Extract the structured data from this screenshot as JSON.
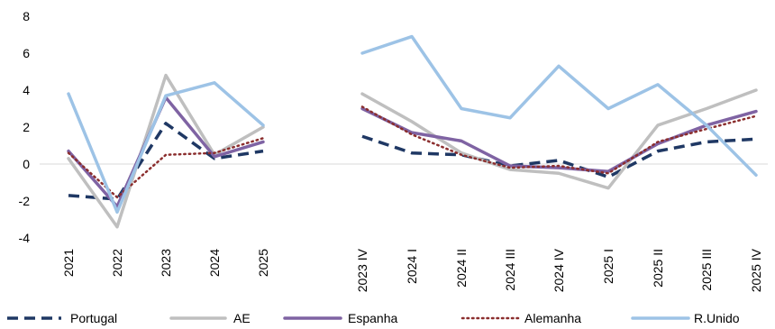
{
  "chart_data": {
    "type": "line",
    "y_axis": {
      "ylim": [
        -4,
        8
      ],
      "ticks": [
        "8",
        "6",
        "4",
        "2",
        "0",
        "-2",
        "-4"
      ],
      "tick_values": [
        8,
        6,
        4,
        2,
        0,
        -2,
        -4
      ]
    },
    "grid": false,
    "legend_position": "bottom",
    "panels": [
      {
        "x_labels": [
          "2021",
          "2022",
          "2023",
          "2024",
          "2025"
        ],
        "series": [
          {
            "name": "Portugal",
            "color": "#1f3864",
            "dash": "long-dash",
            "values": [
              -1.7,
              -1.9,
              2.2,
              0.3,
              0.7
            ]
          },
          {
            "name": "AE",
            "color": "#bfbfbf",
            "dash": "solid",
            "values": [
              0.3,
              -3.4,
              4.8,
              0.5,
              2.0
            ]
          },
          {
            "name": "Espanha",
            "color": "#7f63a3",
            "dash": "solid",
            "values": [
              0.7,
              -2.3,
              3.6,
              0.4,
              1.2
            ]
          },
          {
            "name": "Alemanha",
            "color": "#8b2e2e",
            "dash": "dotted",
            "values": [
              0.6,
              -1.8,
              0.5,
              0.6,
              1.4
            ]
          },
          {
            "name": "R.Unido",
            "color": "#9dc3e6",
            "dash": "solid",
            "values": [
              3.8,
              -2.6,
              3.7,
              4.4,
              2.1
            ]
          }
        ]
      },
      {
        "x_labels": [
          "2023 IV",
          "2024 I",
          "2024 II",
          "2024 III",
          "2024 IV",
          "2025 I",
          "2025 II",
          "2025 III",
          "2025 IV"
        ],
        "series": [
          {
            "name": "Portugal",
            "color": "#1f3864",
            "dash": "long-dash",
            "values": [
              1.5,
              0.6,
              0.5,
              -0.1,
              0.2,
              -0.7,
              0.7,
              1.2,
              1.35
            ]
          },
          {
            "name": "AE",
            "color": "#bfbfbf",
            "dash": "solid",
            "values": [
              3.8,
              2.3,
              0.6,
              -0.3,
              -0.5,
              -1.3,
              2.1,
              3.0,
              4.0
            ]
          },
          {
            "name": "Espanha",
            "color": "#7f63a3",
            "dash": "solid",
            "values": [
              3.0,
              1.7,
              1.25,
              -0.1,
              -0.2,
              -0.4,
              1.1,
              2.1,
              2.85
            ]
          },
          {
            "name": "Alemanha",
            "color": "#8b2e2e",
            "dash": "dotted",
            "values": [
              3.1,
              1.6,
              0.5,
              -0.2,
              -0.1,
              -0.5,
              1.2,
              1.9,
              2.6
            ]
          },
          {
            "name": "R.Unido",
            "color": "#9dc3e6",
            "dash": "solid",
            "values": [
              6.0,
              6.9,
              3.0,
              2.5,
              5.3,
              3.0,
              4.3,
              2.1,
              -0.6
            ]
          }
        ]
      }
    ],
    "legend": [
      {
        "name": "Portugal",
        "color": "#1f3864",
        "dash": "long-dash"
      },
      {
        "name": "AE",
        "color": "#bfbfbf",
        "dash": "solid"
      },
      {
        "name": "Espanha",
        "color": "#7f63a3",
        "dash": "solid"
      },
      {
        "name": "Alemanha",
        "color": "#8b2e2e",
        "dash": "dotted"
      },
      {
        "name": "R.Unido",
        "color": "#9dc3e6",
        "dash": "solid"
      }
    ]
  }
}
